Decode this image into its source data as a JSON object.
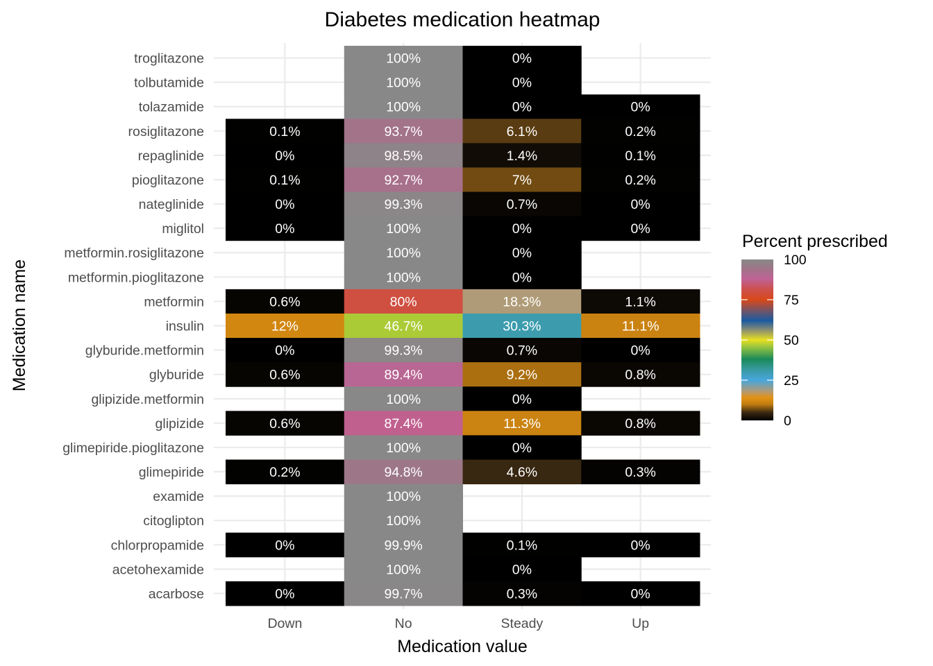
{
  "chart_data": {
    "type": "heatmap",
    "title": "Diabetes medication heatmap",
    "xlabel": "Medication value",
    "ylabel": "Medication name",
    "x_categories": [
      "Down",
      "No",
      "Steady",
      "Up"
    ],
    "y_categories": [
      "troglitazone",
      "tolbutamide",
      "tolazamide",
      "rosiglitazone",
      "repaglinide",
      "pioglitazone",
      "nateglinide",
      "miglitol",
      "metformin.rosiglitazone",
      "metformin.pioglitazone",
      "metformin",
      "insulin",
      "glyburide.metformin",
      "glyburide",
      "glipizide.metformin",
      "glipizide",
      "glimepiride.pioglitazone",
      "glimepiride",
      "examide",
      "citoglipton",
      "chlorpropamide",
      "acetohexamide",
      "acarbose"
    ],
    "values": [
      [
        null,
        100,
        0,
        null
      ],
      [
        null,
        100,
        0,
        null
      ],
      [
        null,
        100,
        0,
        0
      ],
      [
        0.1,
        93.7,
        6.1,
        0.2
      ],
      [
        0,
        98.5,
        1.4,
        0.1
      ],
      [
        0.1,
        92.7,
        7,
        0.2
      ],
      [
        0,
        99.3,
        0.7,
        0
      ],
      [
        0,
        100,
        0,
        0
      ],
      [
        null,
        100,
        0,
        null
      ],
      [
        null,
        100,
        0,
        null
      ],
      [
        0.6,
        80,
        18.3,
        1.1
      ],
      [
        12,
        46.7,
        30.3,
        11.1
      ],
      [
        0,
        99.3,
        0.7,
        0
      ],
      [
        0.6,
        89.4,
        9.2,
        0.8
      ],
      [
        null,
        100,
        0,
        null
      ],
      [
        0.6,
        87.4,
        11.3,
        0.8
      ],
      [
        null,
        100,
        0,
        null
      ],
      [
        0.2,
        94.8,
        4.6,
        0.3
      ],
      [
        null,
        100,
        null,
        null
      ],
      [
        null,
        100,
        null,
        null
      ],
      [
        0,
        99.9,
        0.1,
        0
      ],
      [
        null,
        100,
        0,
        null
      ],
      [
        0,
        99.7,
        0.3,
        0
      ]
    ],
    "value_suffix": "%",
    "legend": {
      "title": "Percent prescribed",
      "position": "right",
      "range": [
        0,
        100
      ],
      "ticks": [
        0,
        25,
        50,
        75,
        100
      ],
      "colors": [
        {
          "value": 0,
          "color": "#000000"
        },
        {
          "value": 5,
          "color": "#3d2a12"
        },
        {
          "value": 10,
          "color": "#c07c10"
        },
        {
          "value": 14,
          "color": "#e39212"
        },
        {
          "value": 18,
          "color": "#b49a72"
        },
        {
          "value": 25,
          "color": "#46a6dc"
        },
        {
          "value": 31,
          "color": "#3b9ba8"
        },
        {
          "value": 38,
          "color": "#1a8a5a"
        },
        {
          "value": 45,
          "color": "#8cc042"
        },
        {
          "value": 50,
          "color": "#e8e020"
        },
        {
          "value": 56,
          "color": "#8c9070"
        },
        {
          "value": 62,
          "color": "#1a5aa0"
        },
        {
          "value": 68,
          "color": "#705468"
        },
        {
          "value": 75,
          "color": "#d84818"
        },
        {
          "value": 82,
          "color": "#cc5252"
        },
        {
          "value": 88,
          "color": "#bf6296"
        },
        {
          "value": 94,
          "color": "#a07488"
        },
        {
          "value": 100,
          "color": "#888888"
        }
      ]
    },
    "grid": true
  }
}
